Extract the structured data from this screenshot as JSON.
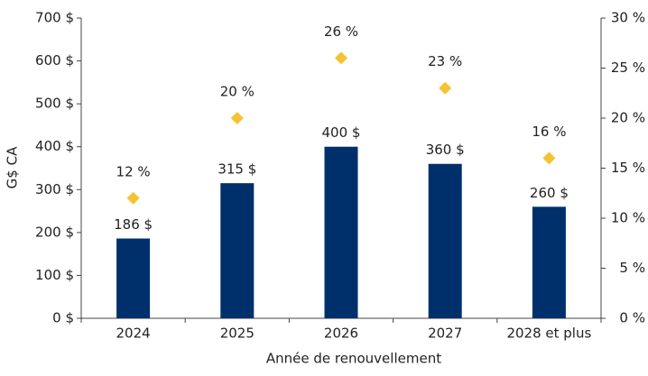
{
  "chart_data": {
    "type": "bar",
    "y_label": "G$ CA",
    "x_label": "Année de renouvellement",
    "categories": [
      "2024",
      "2025",
      "2026",
      "2027",
      "2028 et plus"
    ],
    "series": [
      {
        "type": "bar",
        "color": "#00306b",
        "values": [
          186,
          315,
          400,
          360,
          260
        ],
        "value_labels": [
          "186 $",
          "315 $",
          "400 $",
          "360 $",
          "260 $"
        ]
      },
      {
        "type": "scatter",
        "axis": "y2",
        "color": "#f5c232",
        "values": [
          12,
          20,
          26,
          23,
          16
        ],
        "value_labels": [
          "12 %",
          "20 %",
          "26 %",
          "23 %",
          "16 %"
        ]
      }
    ],
    "ylim": [
      0,
      700
    ],
    "yticks": [
      {
        "value": 0,
        "label": "0 $"
      },
      {
        "value": 100,
        "label": "100 $"
      },
      {
        "value": 200,
        "label": "200 $"
      },
      {
        "value": 300,
        "label": "300 $"
      },
      {
        "value": 400,
        "label": "400 $"
      },
      {
        "value": 500,
        "label": "500 $"
      },
      {
        "value": 600,
        "label": "600 $"
      },
      {
        "value": 700,
        "label": "700 $"
      }
    ],
    "y2lim": [
      0,
      30
    ],
    "y2ticks": [
      {
        "value": 0,
        "label": "0 %"
      },
      {
        "value": 5,
        "label": "5 %"
      },
      {
        "value": 10,
        "label": "10 %"
      },
      {
        "value": 15,
        "label": "15 %"
      },
      {
        "value": 20,
        "label": "20 %"
      },
      {
        "value": 25,
        "label": "25 %"
      },
      {
        "value": 30,
        "label": "30 %"
      }
    ],
    "grid": false
  }
}
